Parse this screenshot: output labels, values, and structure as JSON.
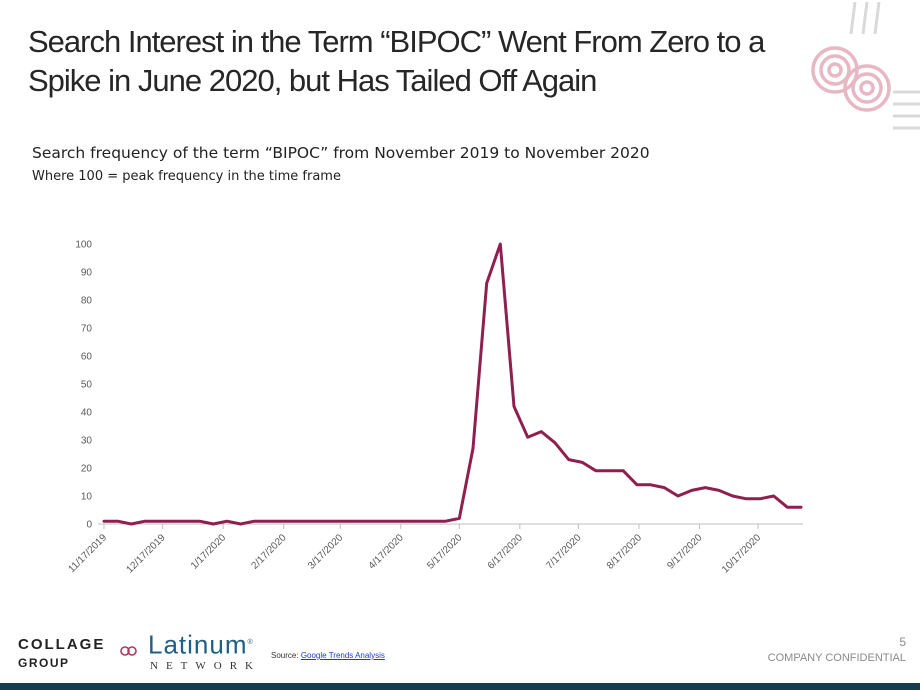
{
  "slide": {
    "title": "Search Interest in the Term “BIPOC” Went From Zero to a Spike in June 2020, but Has Tailed Off Again",
    "subtitle": "Search frequency of the term “BIPOC” from November 2019 to November 2020",
    "subtitle2": "Where 100 = peak frequency in the time frame"
  },
  "footer": {
    "brand_line1": "COLLAGE",
    "brand_line2": "GROUP",
    "partner_brand": "Latinum",
    "partner_reg": "®",
    "partner_sub": "NETWORK",
    "source_label": "Source:",
    "source_link": "Google Trends Analysis",
    "page_number": "5",
    "confidential": "COMPANY CONFIDENTIAL"
  },
  "colors": {
    "line": "#8e1f4f",
    "axis": "#bfbfbf",
    "text": "#595959",
    "accent_bar": "#163d4f",
    "deco": "#e7b8c4"
  },
  "chart_data": {
    "type": "line",
    "title": "",
    "xlabel": "",
    "ylabel": "",
    "ylim": [
      0,
      100
    ],
    "yticks": [
      0,
      10,
      20,
      30,
      40,
      50,
      60,
      70,
      80,
      90,
      100
    ],
    "xlim": [
      "11/17/2019",
      "11/8/2020"
    ],
    "xtick_labels": [
      "11/17/2019",
      "12/17/2019",
      "1/17/2020",
      "2/17/2020",
      "3/17/2020",
      "4/17/2020",
      "5/17/2020",
      "6/17/2020",
      "7/17/2020",
      "8/17/2020",
      "9/17/2020",
      "10/17/2020"
    ],
    "grid": false,
    "legend": "none",
    "series": [
      {
        "x": [
          "11/17/2019",
          "11/24/2019",
          "12/1/2019",
          "12/8/2019",
          "12/15/2019",
          "12/22/2019",
          "12/29/2019",
          "1/5/2020",
          "1/12/2020",
          "1/19/2020",
          "1/26/2020",
          "2/2/2020",
          "2/9/2020",
          "2/16/2020",
          "2/23/2020",
          "3/1/2020",
          "3/8/2020",
          "3/15/2020",
          "3/22/2020",
          "3/29/2020",
          "4/5/2020",
          "4/12/2020",
          "4/19/2020",
          "4/26/2020",
          "5/3/2020",
          "5/10/2020",
          "5/17/2020",
          "5/24/2020",
          "5/31/2020",
          "6/7/2020",
          "6/14/2020",
          "6/21/2020",
          "6/28/2020",
          "7/5/2020",
          "7/12/2020",
          "7/19/2020",
          "7/26/2020",
          "8/2/2020",
          "8/9/2020",
          "8/16/2020",
          "8/23/2020",
          "8/30/2020",
          "9/6/2020",
          "9/13/2020",
          "9/20/2020",
          "9/27/2020",
          "10/4/2020",
          "10/11/2020",
          "10/18/2020",
          "10/25/2020",
          "11/1/2020",
          "11/8/2020"
        ],
        "values": [
          1,
          1,
          0,
          1,
          1,
          1,
          1,
          1,
          0,
          1,
          0,
          1,
          1,
          1,
          1,
          1,
          1,
          1,
          1,
          1,
          1,
          1,
          1,
          1,
          1,
          1,
          2,
          27,
          86,
          100,
          42,
          31,
          33,
          29,
          23,
          22,
          19,
          19,
          19,
          14,
          14,
          13,
          10,
          12,
          13,
          12,
          10,
          9,
          9,
          10,
          6,
          6
        ]
      }
    ]
  }
}
